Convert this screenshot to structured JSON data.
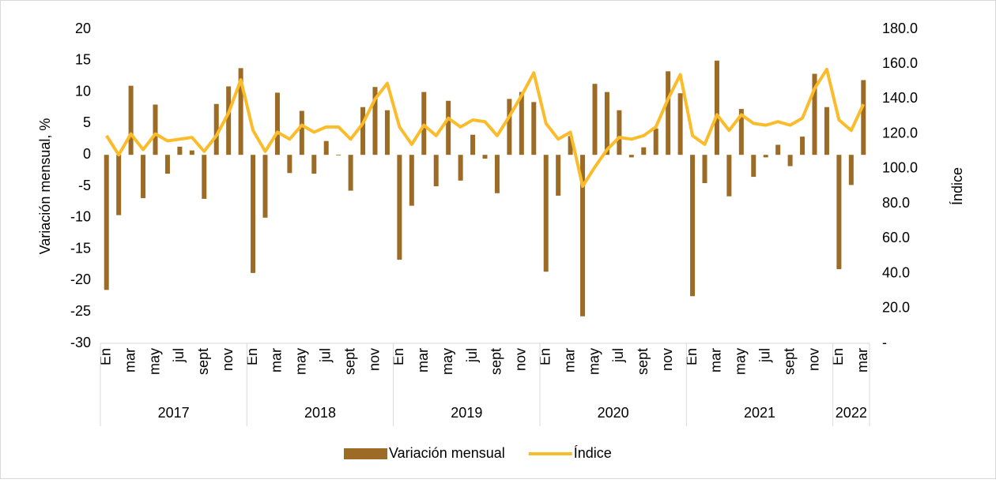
{
  "chart_data": {
    "type": "bar-line",
    "categories": [
      "En",
      null,
      "mar",
      null,
      "may",
      null,
      "jul",
      null,
      "sept",
      null,
      "nov",
      null,
      "En",
      null,
      "mar",
      null,
      "may",
      null,
      "jul",
      null,
      "sept",
      null,
      "nov",
      null,
      "En",
      null,
      "mar",
      null,
      "may",
      null,
      "jul",
      null,
      "sept",
      null,
      "nov",
      null,
      "En",
      null,
      "mar",
      null,
      "may",
      null,
      "jul",
      null,
      "sept",
      null,
      "nov",
      null,
      "En",
      null,
      "mar",
      null,
      "may",
      null,
      "jul",
      null,
      "sept",
      null,
      "nov",
      null,
      "En",
      null,
      "mar"
    ],
    "years": [
      "2017",
      "2018",
      "2019",
      "2020",
      "2021",
      "2022"
    ],
    "series": [
      {
        "name": "Variación mensual",
        "type": "bar",
        "color": "#9c6b25",
        "values": [
          -21.5,
          -9.6,
          11,
          -6.9,
          8,
          -3,
          1.3,
          0.7,
          -7,
          8.1,
          10.9,
          13.8,
          -18.8,
          -10,
          9.9,
          -2.9,
          7,
          -3,
          2.2,
          -0.1,
          -5.7,
          7.6,
          10.8,
          7.1,
          -16.7,
          -8.1,
          10,
          -5,
          8.6,
          -4.1,
          3.2,
          -0.6,
          -6.1,
          8.9,
          10,
          8.4,
          -18.6,
          -6.5,
          3,
          -25.7,
          11.3,
          10,
          7.1,
          -0.4,
          1.2,
          4.2,
          13.3,
          9.8,
          -22.5,
          -4.5,
          15,
          -6.6,
          7.3,
          -3.5,
          -0.4,
          1.6,
          -1.8,
          2.9,
          12.9,
          7.6,
          -18.2,
          -4.8,
          11.9
        ]
      },
      {
        "name": "Índice",
        "type": "line",
        "axis": "y2",
        "color": "#fbbc2c",
        "values": [
          119,
          108,
          120,
          111,
          120,
          116,
          117,
          118,
          110,
          119,
          132,
          151,
          122,
          110,
          121,
          117,
          125,
          121,
          124,
          124,
          117,
          126,
          140,
          149,
          124,
          114,
          125,
          119,
          129,
          124,
          128,
          127,
          119,
          130,
          142,
          155,
          126,
          117,
          121,
          90,
          101,
          111,
          118,
          117,
          119,
          124,
          140,
          154,
          119,
          114,
          131,
          122,
          131,
          126,
          125,
          127,
          125,
          129,
          146,
          157,
          128,
          122,
          137
        ]
      }
    ],
    "ylabel": "Variación mensual, %",
    "y2label": "Índice",
    "ylim": [
      -30,
      20
    ],
    "yticks": [
      20,
      15,
      10,
      5,
      0,
      -5,
      -10,
      -15,
      -20,
      -25,
      -30
    ],
    "y2lim": [
      0,
      180
    ],
    "y2ticks": [
      {
        "value": 180,
        "label": "180.0"
      },
      {
        "value": 160,
        "label": "160.0"
      },
      {
        "value": 140,
        "label": "140.0"
      },
      {
        "value": 120,
        "label": "120.0"
      },
      {
        "value": 100,
        "label": "100.0"
      },
      {
        "value": 80,
        "label": "80.0"
      },
      {
        "value": 60,
        "label": "60.0"
      },
      {
        "value": 40,
        "label": "40.0"
      },
      {
        "value": 20,
        "label": "20.0"
      },
      {
        "value": 0,
        "label": "-"
      }
    ],
    "legend": "bottom",
    "grid": false
  }
}
